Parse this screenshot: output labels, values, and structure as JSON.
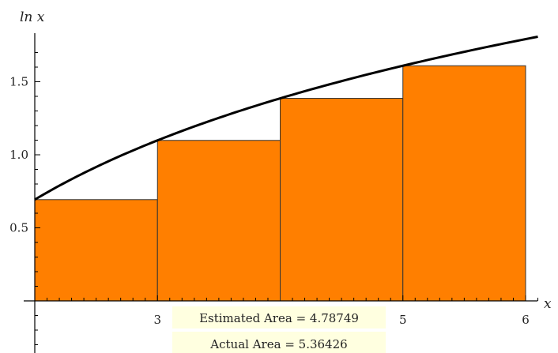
{
  "chart_data": {
    "type": "bar",
    "description_free": true,
    "function_label": "ln x",
    "xlabel": "x",
    "ylabel": "ln x",
    "xlim": [
      2,
      6.1
    ],
    "ylim": [
      0,
      1.8
    ],
    "x_ticks": [
      {
        "value": 3,
        "label": "3"
      },
      {
        "value": 5,
        "label": "5"
      },
      {
        "value": 6,
        "label": "6"
      }
    ],
    "y_ticks": [
      {
        "value": 0.5,
        "label": "0.5"
      },
      {
        "value": 1.0,
        "label": "1.0"
      },
      {
        "value": 1.5,
        "label": "1.5"
      }
    ],
    "bars": [
      {
        "x_start": 2,
        "x_end": 3,
        "value": 0.6931
      },
      {
        "x_start": 3,
        "x_end": 4,
        "value": 1.0986
      },
      {
        "x_start": 4,
        "x_end": 5,
        "value": 1.3863
      },
      {
        "x_start": 5,
        "x_end": 6,
        "value": 1.6094
      }
    ],
    "curve": {
      "function": "ln",
      "x_start": 2,
      "x_end": 6.1
    },
    "grid": false,
    "estimated_area_text": "Estimated Area = 4.78749",
    "actual_area_text": "Actual Area = 5.36426",
    "colors": {
      "bar_fill": "#ff7f00",
      "bar_stroke": "#333333",
      "curve": "#000000",
      "annotation_bg": "#ffffe0"
    }
  }
}
